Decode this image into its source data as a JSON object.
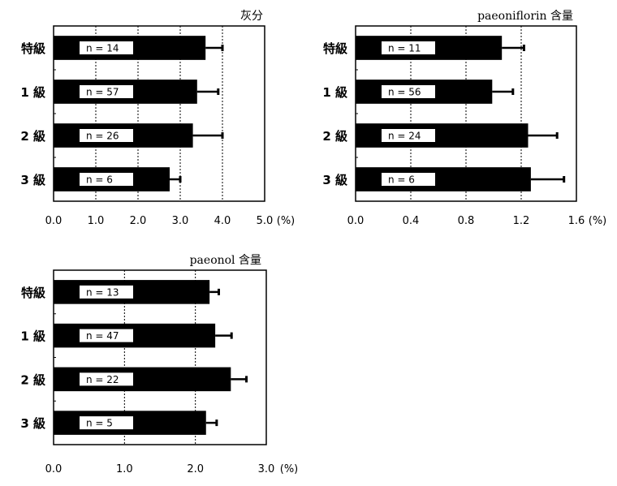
{
  "chart_data": [
    {
      "type": "bar",
      "orientation": "horizontal",
      "title": "灰分",
      "categories": [
        "特級",
        "1 級",
        "2 級",
        "3 級"
      ],
      "values": [
        3.6,
        3.4,
        3.3,
        2.75
      ],
      "errors": [
        0.4,
        0.5,
        0.7,
        0.25
      ],
      "n_labels": [
        "n = 14",
        "n = 57",
        "n = 26",
        "n = 6"
      ],
      "xlim": [
        0,
        5
      ],
      "xticks": [
        "0.0",
        "1.0",
        "2.0",
        "3.0",
        "4.0",
        "5.0"
      ],
      "unit": "(%)",
      "grid": "vertical dotted",
      "bar_color": "#000000"
    },
    {
      "type": "bar",
      "orientation": "horizontal",
      "title": "paeoniflorin 含量",
      "categories": [
        "特級",
        "1 級",
        "2 級",
        "3 級"
      ],
      "values": [
        1.06,
        0.99,
        1.25,
        1.27
      ],
      "errors": [
        0.16,
        0.15,
        0.21,
        0.24
      ],
      "n_labels": [
        "n = 11",
        "n = 56",
        "n = 24",
        "n = 6"
      ],
      "xlim": [
        0,
        1.6
      ],
      "xticks": [
        "0.0",
        "0.4",
        "0.8",
        "1.2",
        "1.6"
      ],
      "unit": "(%)",
      "grid": "vertical dotted",
      "bar_color": "#000000"
    },
    {
      "type": "bar",
      "orientation": "horizontal",
      "title": "paeonol 含量",
      "categories": [
        "特級",
        "1 級",
        "2 級",
        "3 級"
      ],
      "values": [
        2.2,
        2.28,
        2.5,
        2.15
      ],
      "errors": [
        0.13,
        0.23,
        0.22,
        0.15
      ],
      "n_labels": [
        "n = 13",
        "n = 47",
        "n = 22",
        "n = 5"
      ],
      "xlim": [
        0,
        3
      ],
      "xticks": [
        "0.0",
        "1.0",
        "2.0",
        "3.0"
      ],
      "unit": "(%)",
      "grid": "vertical dotted",
      "bar_color": "#000000"
    }
  ]
}
